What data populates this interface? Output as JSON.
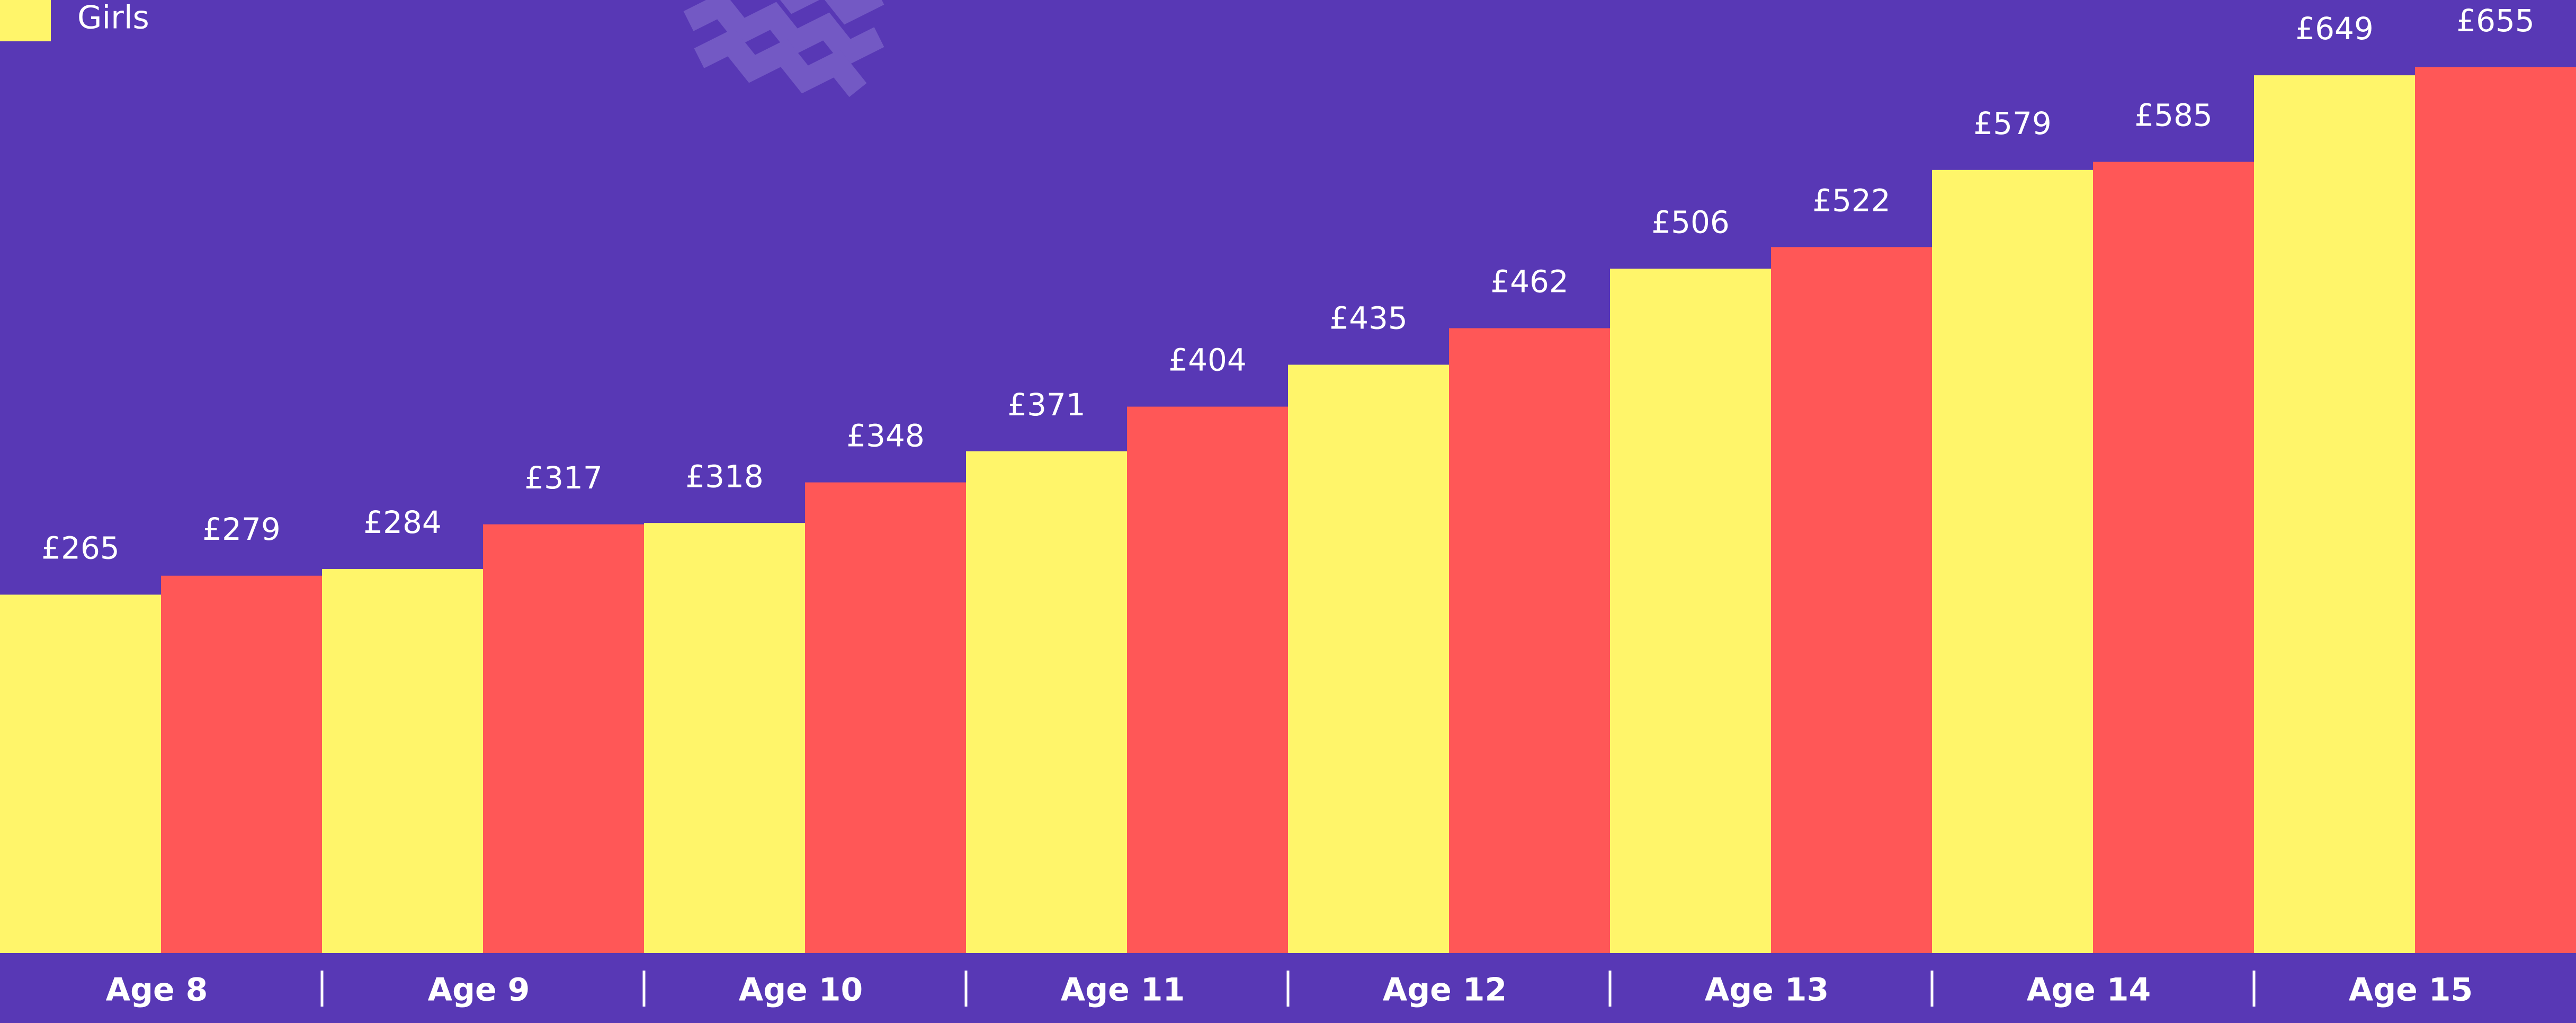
{
  "chart_data": {
    "type": "bar",
    "categories": [
      "Age 8",
      "Age 9",
      "Age 10",
      "Age 11",
      "Age 12",
      "Age 13",
      "Age 14",
      "Age 15"
    ],
    "series": [
      {
        "name": "Girls",
        "color": "#fff56a",
        "values": [
          265,
          284,
          318,
          371,
          435,
          506,
          579,
          649
        ],
        "value_labels": [
          "£265",
          "£284",
          "£318",
          "£371",
          "£435",
          "£506",
          "£579",
          "£649"
        ]
      },
      {
        "color": "#ff5757",
        "values": [
          279,
          317,
          348,
          404,
          462,
          522,
          585,
          655
        ],
        "value_labels": [
          "£279",
          "£317",
          "£348",
          "£404",
          "£462",
          "£522",
          "£585",
          "£655"
        ]
      }
    ],
    "legend": "top-left"
  }
}
